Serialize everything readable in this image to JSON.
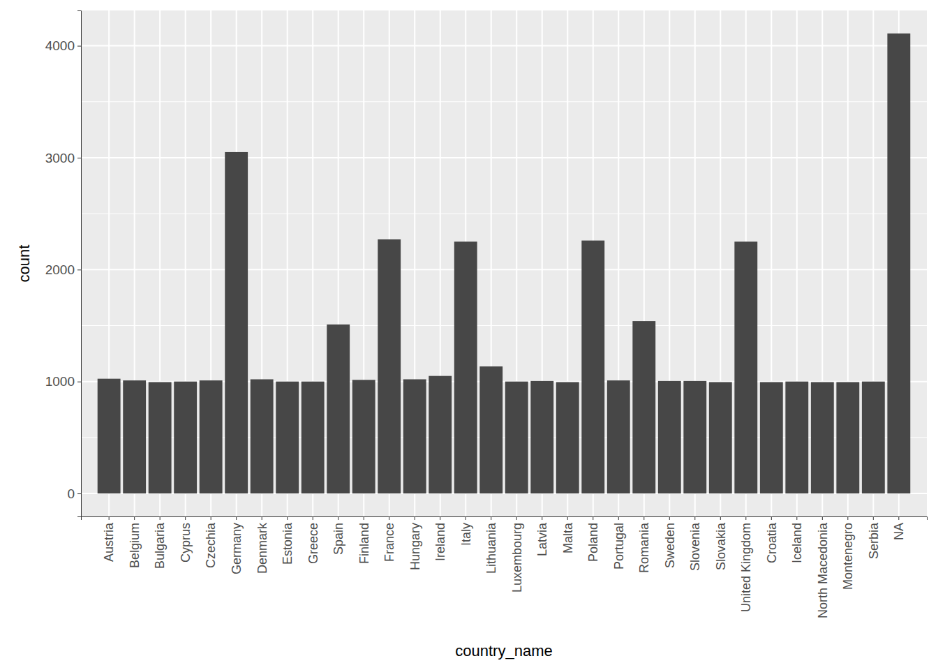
{
  "chart_data": {
    "type": "bar",
    "x_label": "country_name",
    "y_label": "count",
    "categories": [
      "Austria",
      "Belgium",
      "Bulgaria",
      "Cyprus",
      "Czechia",
      "Germany",
      "Denmark",
      "Estonia",
      "Greece",
      "Spain",
      "Finland",
      "France",
      "Hungary",
      "Ireland",
      "Italy",
      "Lithuania",
      "Luxembourg",
      "Latvia",
      "Malta",
      "Poland",
      "Portugal",
      "Romania",
      "Sweden",
      "Slovenia",
      "Slovakia",
      "United Kingdom",
      "Croatia",
      "Iceland",
      "North Macedonia",
      "Montenegro",
      "Serbia",
      "NA"
    ],
    "values": [
      1025,
      1010,
      995,
      1000,
      1010,
      3050,
      1020,
      1000,
      1000,
      1510,
      1015,
      2270,
      1020,
      1050,
      2250,
      1135,
      1000,
      1005,
      995,
      2260,
      1010,
      1540,
      1005,
      1005,
      995,
      2250,
      995,
      1000,
      995,
      995,
      1000,
      4110
    ],
    "color": "#474747",
    "ylim": [
      -205.5,
      4315.5
    ],
    "yticks": [
      0,
      1000,
      2000,
      3000,
      4000
    ],
    "grid": true
  }
}
